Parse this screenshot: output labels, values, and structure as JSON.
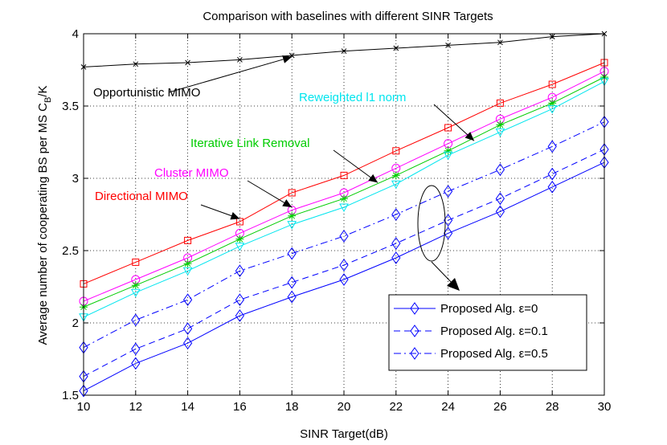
{
  "chart_data": {
    "type": "line",
    "title": "Comparison with baselines with different SINR Targets",
    "xlabel": "SINR Target(dB)",
    "ylabel_main": "Average number of cooperating BS per MS C",
    "ylabel_sub": "B",
    "ylabel_tail": "/K",
    "xlim": [
      10,
      30
    ],
    "ylim": [
      1.5,
      4
    ],
    "grid": true,
    "x": [
      10,
      12,
      14,
      16,
      18,
      20,
      22,
      24,
      26,
      28,
      30
    ],
    "xticks": [
      "10",
      "12",
      "14",
      "16",
      "18",
      "20",
      "22",
      "24",
      "26",
      "28",
      "30"
    ],
    "yticks": [
      "1.5",
      "2",
      "2.5",
      "3",
      "3.5",
      "4"
    ],
    "series": [
      {
        "name": "Opportunistic MIMO",
        "color": "#000000",
        "marker": "x",
        "dash": "solid",
        "values": [
          3.77,
          3.79,
          3.8,
          3.82,
          3.85,
          3.88,
          3.9,
          3.92,
          3.94,
          3.98,
          4.0
        ]
      },
      {
        "name": "Directional MIMO",
        "color": "#ff0000",
        "marker": "square",
        "dash": "solid",
        "values": [
          2.27,
          2.42,
          2.57,
          2.7,
          2.9,
          3.02,
          3.19,
          3.35,
          3.52,
          3.65,
          3.8
        ]
      },
      {
        "name": "Cluster MIMO",
        "color": "#ff00ff",
        "marker": "circle",
        "dash": "solid",
        "values": [
          2.15,
          2.3,
          2.45,
          2.62,
          2.78,
          2.9,
          3.07,
          3.24,
          3.41,
          3.56,
          3.74
        ]
      },
      {
        "name": "Iterative Link Removal",
        "color": "#00cc00",
        "marker": "star",
        "dash": "solid",
        "values": [
          2.11,
          2.26,
          2.41,
          2.58,
          2.74,
          2.86,
          3.02,
          3.19,
          3.37,
          3.52,
          3.7
        ]
      },
      {
        "name": "Reweighted l1 norm",
        "color": "#00e5ee",
        "marker": "triangle-down",
        "dash": "solid",
        "values": [
          2.04,
          2.21,
          2.36,
          2.53,
          2.68,
          2.8,
          2.96,
          3.16,
          3.32,
          3.48,
          3.67
        ]
      },
      {
        "name": "Proposed Alg. ε=0.5",
        "color": "#0000ff",
        "marker": "diamond",
        "dash": "dashdot",
        "values": [
          1.83,
          2.02,
          2.16,
          2.36,
          2.48,
          2.6,
          2.75,
          2.91,
          3.06,
          3.22,
          3.39
        ]
      },
      {
        "name": "Proposed Alg. ε=0.1",
        "color": "#0000ff",
        "marker": "diamond",
        "dash": "dashed",
        "values": [
          1.63,
          1.82,
          1.96,
          2.16,
          2.28,
          2.4,
          2.55,
          2.71,
          2.86,
          3.03,
          3.2
        ]
      },
      {
        "name": "Proposed Alg. ε=0",
        "color": "#0000ff",
        "marker": "diamond",
        "dash": "solid",
        "values": [
          1.53,
          1.72,
          1.86,
          2.05,
          2.18,
          2.3,
          2.45,
          2.62,
          2.77,
          2.94,
          3.11
        ]
      }
    ],
    "annotations": [
      {
        "text": "Opportunistic MIMO",
        "color": "#000000",
        "arrow_to": [
          18,
          3.84
        ]
      },
      {
        "text": "Reweighted l1 norm",
        "color": "#00e5ee",
        "arrow_to": [
          25,
          3.26
        ]
      },
      {
        "text": "Iterative Link Removal",
        "color": "#00cc00",
        "arrow_to": [
          21.3,
          2.97
        ]
      },
      {
        "text": "Cluster MIMO",
        "color": "#ff00ff",
        "arrow_to": [
          18,
          2.8
        ]
      },
      {
        "text": "Directional MIMO",
        "color": "#ff0000",
        "arrow_to": [
          16,
          2.72
        ]
      }
    ],
    "legend": {
      "position": "bottom-right",
      "entries": [
        {
          "label": "Proposed Alg. ε=0",
          "series": 7
        },
        {
          "label": "Proposed Alg. ε=0.1",
          "series": 6
        },
        {
          "label": "Proposed Alg. ε=0.5",
          "series": 5
        }
      ]
    }
  }
}
